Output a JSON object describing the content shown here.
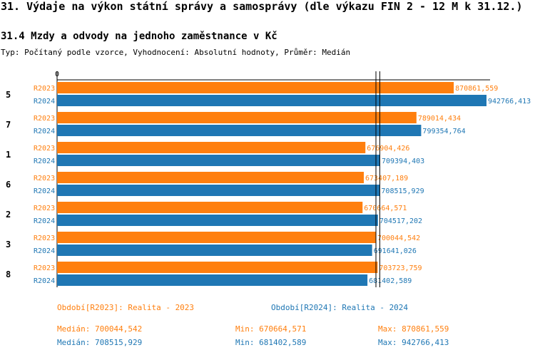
{
  "title": "31. Výdaje na výkon státní správy a samosprávy (dle výkazu FIN 2 - 12 M k 31.12.)",
  "subtitle": "31.4 Mzdy a odvody na jednoho zaměstnance v Kč",
  "description": "Typ: Počítaný podle vzorce, Vyhodnocení: Absolutní hodnoty, Průměr: Medián",
  "colors": {
    "R2023": "#ff7f0e",
    "R2024": "#1f77b4"
  },
  "chart_data": {
    "type": "bar",
    "orientation": "horizontal",
    "axis_zero_label": "0",
    "xlim": [
      0,
      942766.413
    ],
    "categories": [
      "5",
      "7",
      "1",
      "6",
      "2",
      "3",
      "8"
    ],
    "series": [
      {
        "name": "R2023",
        "values": [
          870861.559,
          789014.434,
          676904.426,
          673407.189,
          670664.571,
          700044.542,
          703723.759
        ],
        "labels": [
          "870861,559",
          "789014,434",
          "676904,426",
          "673407,189",
          "670664,571",
          "700044,542",
          "703723,759"
        ]
      },
      {
        "name": "R2024",
        "values": [
          942766.413,
          799354.764,
          709394.403,
          708515.929,
          704517.202,
          691641.026,
          681402.589
        ],
        "labels": [
          "942766,413",
          "799354,764",
          "709394,403",
          "708515,929",
          "704517,202",
          "691641,026",
          "681402,589"
        ]
      }
    ],
    "median_lines": [
      700044.542,
      708515.929
    ]
  },
  "legend": {
    "r2023": "Období[R2023]: Realita - 2023",
    "r2024": "Období[R2024]: Realita - 2024"
  },
  "stats": {
    "r2023": {
      "median": "Medián: 700044,542",
      "min": "Min: 670664,571",
      "max": "Max: 870861,559"
    },
    "r2024": {
      "median": "Medián: 708515,929",
      "min": "Min: 681402,589",
      "max": "Max: 942766,413"
    }
  }
}
